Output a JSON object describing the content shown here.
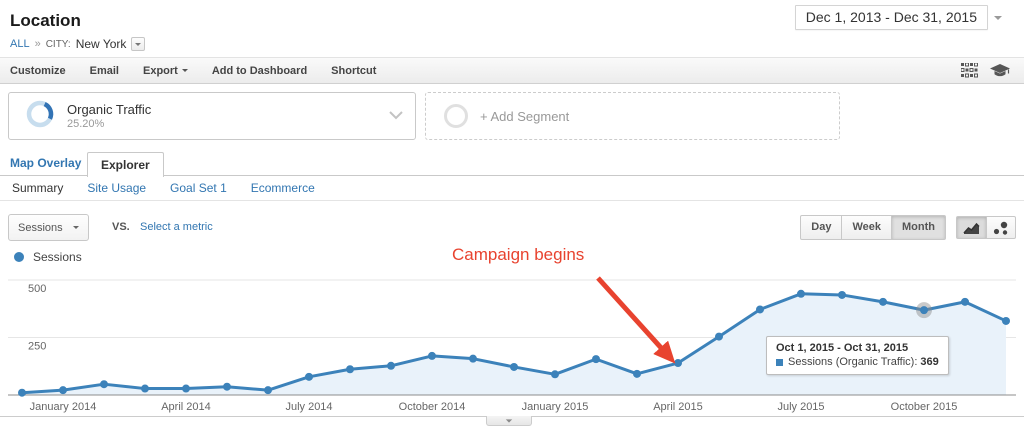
{
  "header": {
    "title": "Location",
    "date_range": "Dec 1, 2013 - Dec 31, 2015"
  },
  "breadcrumb": {
    "root": "ALL",
    "separator": "»",
    "dimension": "CITY:",
    "value": "New York"
  },
  "toolbar": {
    "items": [
      "Customize",
      "Email",
      "Export",
      "Add to Dashboard",
      "Shortcut"
    ]
  },
  "segments": {
    "active": {
      "name": "Organic Traffic",
      "percent": "25.20%"
    },
    "add_label": "+ Add Segment"
  },
  "tabs": {
    "map_overlay": "Map Overlay",
    "explorer": "Explorer"
  },
  "subtabs": {
    "items": [
      "Summary",
      "Site Usage",
      "Goal Set 1",
      "Ecommerce"
    ],
    "active": "Summary"
  },
  "controls": {
    "metric_selector": "Sessions",
    "vs_label": "VS.",
    "select_metric": "Select a metric",
    "granularity": [
      "Day",
      "Week",
      "Month"
    ],
    "active_granularity": "Month"
  },
  "legend": {
    "series": "Sessions"
  },
  "annotation": {
    "text": "Campaign begins",
    "color": "#e8432f"
  },
  "tooltip": {
    "title": "Oct 1, 2015 - Oct 31, 2015",
    "series_label": "Sessions (Organic Traffic):",
    "value": "369"
  },
  "chart_data": {
    "type": "line",
    "title": "Sessions by month (Organic Traffic segment)",
    "x": [
      "Dec 2013",
      "Jan 2014",
      "Feb 2014",
      "Mar 2014",
      "Apr 2014",
      "May 2014",
      "Jun 2014",
      "Jul 2014",
      "Aug 2014",
      "Sep 2014",
      "Oct 2014",
      "Nov 2014",
      "Dec 2014",
      "Jan 2015",
      "Feb 2015",
      "Mar 2015",
      "Apr 2015",
      "May 2015",
      "Jun 2015",
      "Jul 2015",
      "Aug 2015",
      "Sep 2015",
      "Oct 2015",
      "Nov 2015",
      "Dec 2015"
    ],
    "series": [
      {
        "name": "Sessions",
        "values": [
          10,
          21,
          47,
          28,
          28,
          36,
          21,
          79,
          112,
          127,
          170,
          158,
          122,
          90,
          156,
          92,
          139,
          254,
          372,
          440,
          435,
          405,
          369,
          405,
          322
        ]
      }
    ],
    "x_tick_labels": [
      "January 2014",
      "April 2014",
      "July 2014",
      "October 2014",
      "January 2015",
      "April 2015",
      "July 2015",
      "October 2015"
    ],
    "x_tick_indices": [
      1,
      4,
      7,
      10,
      13,
      16,
      19,
      22
    ],
    "y_ticks": [
      250,
      500
    ],
    "ylim": [
      0,
      550
    ],
    "grid": true,
    "legend_position": "top-left",
    "line_color": "#3c82ba",
    "fill_color": "#e9f2fa",
    "highlighted_index": 22,
    "annotation_index": 16
  }
}
